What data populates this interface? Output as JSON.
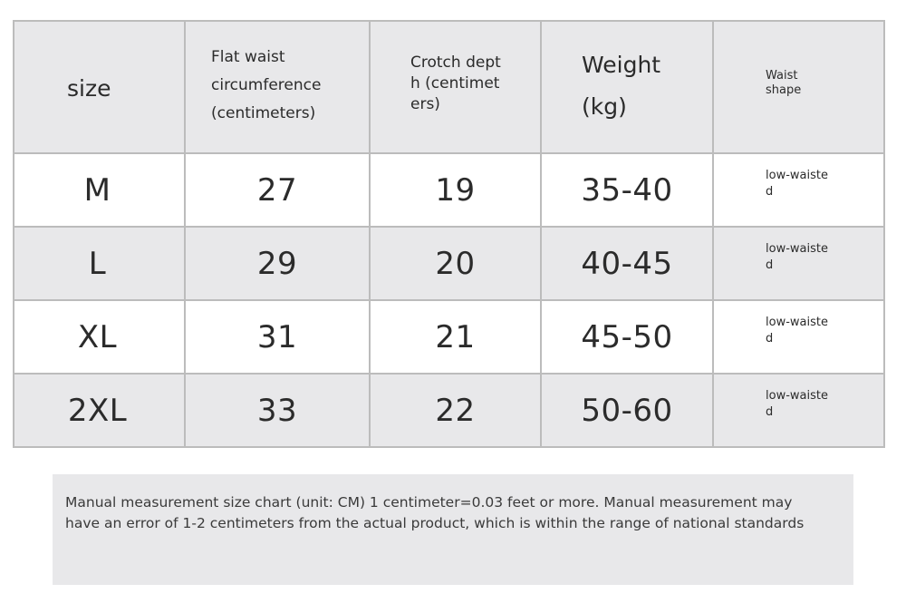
{
  "table": {
    "headers": {
      "size": "size",
      "waist": "Flat waist circumference (centimeters)",
      "crotch": "Crotch depth (centimeters)",
      "weight": "Weight (kg)",
      "shape": "Waist shape"
    },
    "rows": [
      {
        "size": "M",
        "waist": "27",
        "crotch": "19",
        "weight": "35-40",
        "shape": "low-waisted"
      },
      {
        "size": "L",
        "waist": "29",
        "crotch": "20",
        "weight": "40-45",
        "shape": "low-waisted"
      },
      {
        "size": "XL",
        "waist": "31",
        "crotch": "21",
        "weight": "45-50",
        "shape": "low-waisted"
      },
      {
        "size": "2XL",
        "waist": "33",
        "crotch": "22",
        "weight": "50-60",
        "shape": "low-waisted"
      }
    ]
  },
  "note": {
    "text": "Manual measurement size chart (unit: CM) 1 centimeter=0.03 feet or more. Manual measurement may have an error of 1-2 centimeters from the actual product, which is within the range of national standards"
  },
  "colors": {
    "header_bg": "#e8e8ea",
    "row_alt_bg": "#e8e8ea",
    "border": "#bcbcbc",
    "text": "#2b2b2b"
  }
}
